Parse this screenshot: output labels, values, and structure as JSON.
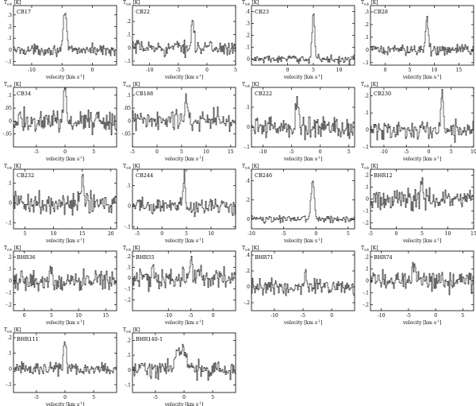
{
  "figure": {
    "y_label_main": "T",
    "y_label_sub": "mb",
    "y_label_unit": "[K]",
    "x_label_main": "velocity [km s",
    "x_label_exp": "-1",
    "x_label_close": "]"
  },
  "chart_data": [
    {
      "type": "line",
      "name": "CB17",
      "xlim": [
        -13,
        4
      ],
      "ylim": [
        -0.13,
        0.38
      ],
      "xticks": [
        -10,
        -5,
        0
      ],
      "yticks": [
        -0.1,
        0,
        0.1,
        0.2,
        0.3
      ],
      "grid": false,
      "series": [
        {
          "peak_x": -4.5,
          "peak_y": 0.32,
          "noise": 0.04
        }
      ]
    },
    {
      "type": "line",
      "name": "CB22",
      "xlim": [
        -13,
        5
      ],
      "ylim": [
        -0.13,
        0.32
      ],
      "xticks": [
        -10,
        -5,
        0,
        5
      ],
      "yticks": [
        -0.1,
        0,
        0.1,
        0.2
      ],
      "grid": false,
      "series": [
        {
          "peak_x": -2.5,
          "peak_y": 0.22,
          "noise": 0.05
        }
      ]
    },
    {
      "type": "line",
      "name": "CB23",
      "xlim": [
        -7,
        13
      ],
      "ylim": [
        -0.05,
        0.45
      ],
      "xticks": [
        0,
        5,
        10
      ],
      "yticks": [
        0,
        0.1,
        0.2,
        0.3,
        0.4
      ],
      "grid": false,
      "series": [
        {
          "peak_x": 5,
          "peak_y": 0.4,
          "noise": 0.03
        }
      ]
    },
    {
      "type": "line",
      "name": "CB28",
      "xlim": [
        -3,
        18
      ],
      "ylim": [
        -0.12,
        0.35
      ],
      "xticks": [
        0,
        5,
        10,
        15
      ],
      "yticks": [
        -0.1,
        0,
        0.1,
        0.2,
        0.3
      ],
      "grid": false,
      "series": [
        {
          "peak_x": 8.5,
          "peak_y": 0.3,
          "noise": 0.04
        }
      ]
    },
    {
      "type": "line",
      "name": "CB34",
      "xlim": [
        -9,
        9
      ],
      "ylim": [
        -0.1,
        0.13
      ],
      "xticks": [
        -5,
        0,
        5
      ],
      "yticks": [
        -0.05,
        0,
        0.05,
        0.1
      ],
      "grid": false,
      "series": [
        {
          "peak_x": 0,
          "peak_y": 0.11,
          "noise": 0.04
        }
      ]
    },
    {
      "type": "line",
      "name": "CB188",
      "xlim": [
        -5,
        16
      ],
      "ylim": [
        -0.1,
        0.13
      ],
      "xticks": [
        -5,
        0,
        5,
        10,
        15
      ],
      "yticks": [
        -0.05,
        0,
        0.05,
        0.1
      ],
      "grid": false,
      "series": [
        {
          "peak_x": 6,
          "peak_y": 0.1,
          "noise": 0.04
        }
      ]
    },
    {
      "type": "line",
      "name": "CB222",
      "xlim": [
        -12,
        6
      ],
      "ylim": [
        -0.1,
        0.2
      ],
      "xticks": [
        -10,
        -5,
        0,
        5
      ],
      "yticks": [
        -0.1,
        0,
        0.1
      ],
      "grid": false,
      "series": [
        {
          "peak_x": -4,
          "peak_y": 0.12,
          "noise": 0.05
        }
      ]
    },
    {
      "type": "line",
      "name": "CB230",
      "xlim": [
        -13,
        10
      ],
      "ylim": [
        -0.1,
        0.25
      ],
      "xticks": [
        -10,
        -5,
        0,
        5,
        10
      ],
      "yticks": [
        -0.1,
        0,
        0.1,
        0.2
      ],
      "grid": false,
      "series": [
        {
          "peak_x": 3,
          "peak_y": 0.2,
          "noise": 0.05
        }
      ]
    },
    {
      "type": "line",
      "name": "CB232",
      "xlim": [
        3,
        21
      ],
      "ylim": [
        -0.13,
        0.17
      ],
      "xticks": [
        5,
        10,
        15,
        20
      ],
      "yticks": [
        -0.1,
        0,
        0.1
      ],
      "grid": false,
      "series": [
        {
          "peak_x": 15,
          "peak_y": 0.11,
          "noise": 0.05
        }
      ]
    },
    {
      "type": "line",
      "name": "CB244",
      "xlim": [
        -6,
        15
      ],
      "ylim": [
        -0.11,
        0.18
      ],
      "xticks": [
        -5,
        0,
        5,
        10
      ],
      "yticks": [
        -0.1,
        0,
        0.1
      ],
      "grid": false,
      "series": [
        {
          "peak_x": 4.5,
          "peak_y": 0.15,
          "noise": 0.04
        }
      ]
    },
    {
      "type": "line",
      "name": "CB246",
      "xlim": [
        -10,
        6
      ],
      "ylim": [
        -0.1,
        0.52
      ],
      "xticks": [
        -10,
        -5,
        0,
        5
      ],
      "yticks": [
        0,
        0.2,
        0.4
      ],
      "grid": false,
      "series": [
        {
          "peak_x": -0.5,
          "peak_y": 0.42,
          "noise": 0.03
        }
      ]
    },
    {
      "type": "line",
      "name": "BHR12",
      "xlim": [
        -5,
        15
      ],
      "ylim": [
        -0.25,
        0.25
      ],
      "xticks": [
        -5,
        0,
        5,
        10,
        15
      ],
      "yticks": [
        -0.2,
        -0.1,
        0,
        0.1,
        0.2
      ],
      "grid": false,
      "series": [
        {
          "peak_x": 5,
          "peak_y": 0.12,
          "noise": 0.08
        }
      ]
    },
    {
      "type": "line",
      "name": "BHR36",
      "xlim": [
        -2,
        17
      ],
      "ylim": [
        -0.25,
        0.25
      ],
      "xticks": [
        0,
        5,
        10,
        15
      ],
      "yticks": [
        -0.2,
        -0.1,
        0,
        0.1,
        0.2
      ],
      "grid": false,
      "series": [
        {
          "peak_x": 5,
          "peak_y": 0.12,
          "noise": 0.07
        }
      ]
    },
    {
      "type": "line",
      "name": "BHR55",
      "xlim": [
        -18,
        5
      ],
      "ylim": [
        -0.3,
        0.25
      ],
      "xticks": [
        -10,
        -5,
        0
      ],
      "yticks": [
        -0.2,
        -0.1,
        0,
        0.1,
        0.2
      ],
      "grid": false,
      "series": [
        {
          "peak_x": -5,
          "peak_y": 0.15,
          "noise": 0.09
        }
      ]
    },
    {
      "type": "line",
      "name": "BHR71",
      "xlim": [
        -14,
        4
      ],
      "ylim": [
        -0.3,
        0.45
      ],
      "xticks": [
        -10,
        -5,
        0
      ],
      "yticks": [
        -0.2,
        0,
        0.2,
        0.4
      ],
      "grid": false,
      "series": [
        {
          "peak_x": -4.5,
          "peak_y": 0.2,
          "noise": 0.09
        }
      ]
    },
    {
      "type": "line",
      "name": "BHR74",
      "xlim": [
        -12,
        7
      ],
      "ylim": [
        -0.25,
        0.25
      ],
      "xticks": [
        -10,
        -5,
        0,
        5
      ],
      "yticks": [
        -0.2,
        -0.1,
        0,
        0.1,
        0.2
      ],
      "grid": false,
      "series": [
        {
          "peak_x": -4,
          "peak_y": 0.12,
          "noise": 0.08
        }
      ]
    },
    {
      "type": "line",
      "name": "BHR111",
      "xlim": [
        -9,
        9
      ],
      "ylim": [
        -0.15,
        0.23
      ],
      "xticks": [
        -5,
        0,
        5
      ],
      "yticks": [
        -0.1,
        0,
        0.1,
        0.2
      ],
      "grid": false,
      "series": [
        {
          "peak_x": 0,
          "peak_y": 0.18,
          "noise": 0.04
        }
      ]
    },
    {
      "type": "line",
      "name": "BHR140-1",
      "xlim": [
        -9,
        9
      ],
      "ylim": [
        -0.15,
        0.25
      ],
      "xticks": [
        -5,
        0,
        5
      ],
      "yticks": [
        -0.1,
        0,
        0.1,
        0.2
      ],
      "grid": false,
      "series": [
        {
          "peak_x": -0.5,
          "peak_y": 0.15,
          "noise": 0.05,
          "broad": true
        }
      ]
    }
  ]
}
